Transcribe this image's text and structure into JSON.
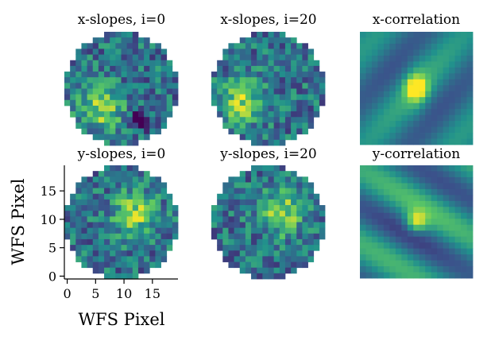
{
  "figure": {
    "ylabel": "WFS Pixel",
    "xlabel": "WFS Pixel"
  },
  "colormap": [
    "#440154",
    "#3b528b",
    "#21918c",
    "#5ec962",
    "#fde725"
  ],
  "chart_data": [
    {
      "type": "heatmap",
      "title": "x-slopes, i=0",
      "grid": "20x20 values, circular mask, viridis colormap",
      "hotspot": [
        6,
        13
      ],
      "dark_spot": [
        13,
        15
      ]
    },
    {
      "type": "heatmap",
      "title": "x-slopes, i=20",
      "grid": "20x20 values, circular mask, viridis colormap",
      "hotspot": [
        5,
        12
      ]
    },
    {
      "type": "heatmap",
      "title": "x-correlation",
      "grid": "19x19 values, peak at center",
      "peak": [
        9,
        9
      ]
    },
    {
      "type": "heatmap",
      "title": "y-slopes, i=0",
      "grid": "20x20 values, circular mask, viridis colormap",
      "xlim": [
        0,
        19
      ],
      "ylim": [
        0,
        19
      ],
      "xticks": [
        0,
        5,
        10,
        15
      ],
      "yticks": [
        0,
        5,
        10,
        15
      ],
      "hotspot": [
        12,
        8
      ]
    },
    {
      "type": "heatmap",
      "title": "y-slopes, i=20",
      "grid": "20x20 values, circular mask, viridis colormap",
      "hotspot": [
        12,
        8
      ]
    },
    {
      "type": "heatmap",
      "title": "y-correlation",
      "grid": "19x19 values, peak at center",
      "peak": [
        9,
        9
      ]
    }
  ]
}
